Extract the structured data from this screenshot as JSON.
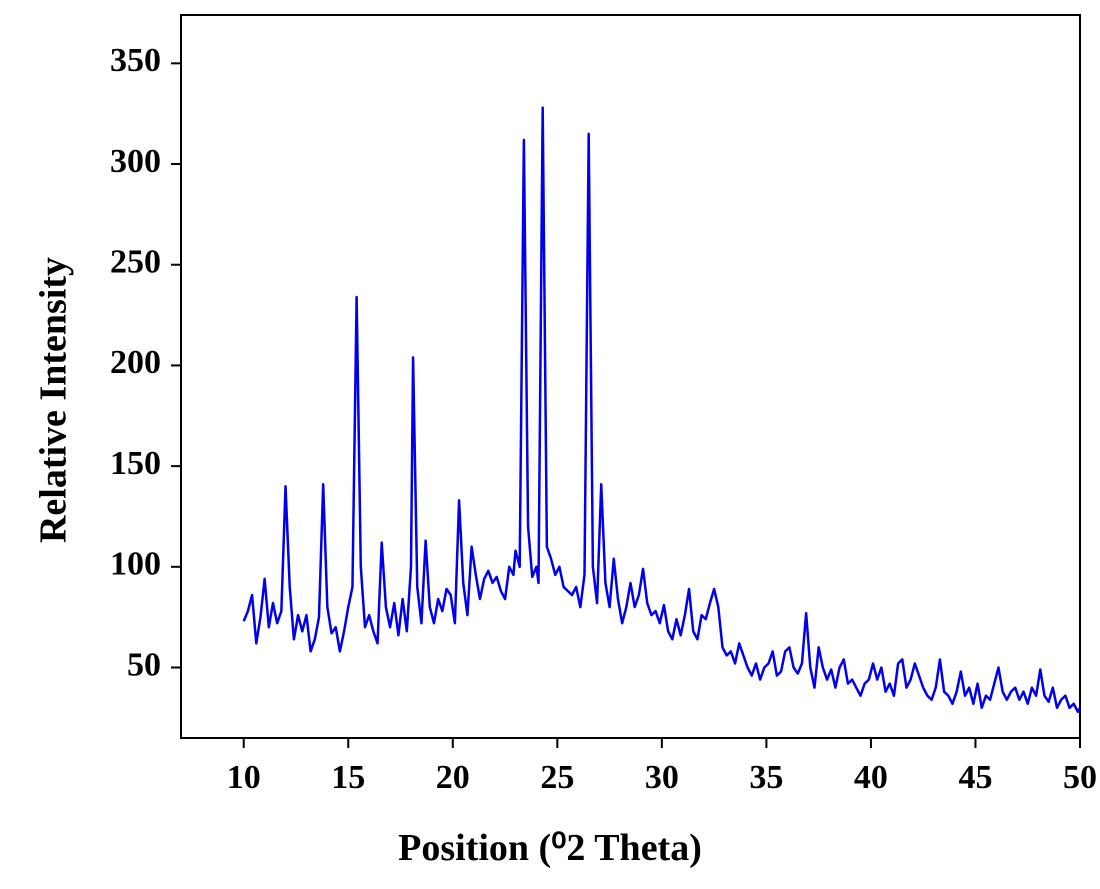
{
  "chart_data": {
    "type": "line",
    "xlabel": "Position (⁰2 Theta)",
    "ylabel": "Relative Intensity",
    "color": "#0000ee",
    "xlim": [
      7,
      50
    ],
    "xticks": [
      10,
      15,
      20,
      25,
      30,
      35,
      40,
      45,
      50
    ],
    "ylim": [
      15,
      374
    ],
    "yticks": [
      50,
      100,
      150,
      200,
      250,
      300,
      350
    ],
    "x": [
      10.0,
      10.2,
      10.4,
      10.6,
      10.8,
      11.0,
      11.2,
      11.4,
      11.6,
      11.8,
      12.0,
      12.2,
      12.4,
      12.6,
      12.8,
      13.0,
      13.2,
      13.4,
      13.6,
      13.8,
      14.0,
      14.2,
      14.4,
      14.6,
      14.8,
      15.0,
      15.2,
      15.4,
      15.6,
      15.8,
      16.0,
      16.2,
      16.4,
      16.6,
      16.8,
      17.0,
      17.2,
      17.4,
      17.6,
      17.8,
      18.0,
      18.1,
      18.3,
      18.5,
      18.7,
      18.9,
      19.1,
      19.3,
      19.5,
      19.7,
      19.9,
      20.1,
      20.3,
      20.5,
      20.7,
      20.9,
      21.1,
      21.3,
      21.5,
      21.7,
      21.9,
      22.1,
      22.3,
      22.5,
      22.7,
      22.9,
      23.0,
      23.2,
      23.4,
      23.6,
      23.8,
      24.0,
      24.1,
      24.3,
      24.5,
      24.7,
      24.9,
      25.1,
      25.3,
      25.5,
      25.7,
      25.9,
      26.1,
      26.3,
      26.5,
      26.7,
      26.9,
      27.1,
      27.3,
      27.5,
      27.7,
      27.9,
      28.1,
      28.3,
      28.5,
      28.7,
      28.9,
      29.1,
      29.3,
      29.5,
      29.7,
      29.9,
      30.1,
      30.3,
      30.5,
      30.7,
      30.9,
      31.1,
      31.3,
      31.5,
      31.7,
      31.9,
      32.1,
      32.3,
      32.5,
      32.7,
      32.9,
      33.1,
      33.3,
      33.5,
      33.7,
      33.9,
      34.1,
      34.3,
      34.5,
      34.7,
      34.9,
      35.1,
      35.3,
      35.5,
      35.7,
      35.9,
      36.1,
      36.3,
      36.5,
      36.7,
      36.9,
      37.1,
      37.3,
      37.5,
      37.7,
      37.9,
      38.1,
      38.3,
      38.5,
      38.7,
      38.9,
      39.1,
      39.3,
      39.5,
      39.7,
      39.9,
      40.1,
      40.3,
      40.5,
      40.7,
      40.9,
      41.1,
      41.3,
      41.5,
      41.7,
      41.9,
      42.1,
      42.3,
      42.5,
      42.7,
      42.9,
      43.1,
      43.3,
      43.5,
      43.7,
      43.9,
      44.1,
      44.3,
      44.5,
      44.7,
      44.9,
      45.1,
      45.3,
      45.5,
      45.7,
      45.9,
      46.1,
      46.3,
      46.5,
      46.7,
      46.9,
      47.1,
      47.3,
      47.5,
      47.7,
      47.9,
      48.1,
      48.3,
      48.5,
      48.7,
      48.9,
      49.1,
      49.3,
      49.5,
      49.7,
      49.9,
      50.0
    ],
    "values": [
      73,
      78,
      86,
      62,
      75,
      94,
      70,
      82,
      72,
      78,
      140,
      90,
      64,
      76,
      68,
      76,
      58,
      64,
      75,
      141,
      80,
      67,
      70,
      58,
      68,
      80,
      90,
      234,
      100,
      70,
      76,
      68,
      62,
      112,
      80,
      70,
      82,
      66,
      84,
      68,
      100,
      204,
      90,
      72,
      113,
      80,
      72,
      84,
      78,
      89,
      86,
      72,
      133,
      92,
      76,
      110,
      96,
      84,
      94,
      98,
      92,
      95,
      88,
      84,
      100,
      96,
      108,
      100,
      312,
      120,
      95,
      100,
      92,
      328,
      110,
      104,
      96,
      100,
      90,
      88,
      86,
      90,
      80,
      96,
      315,
      100,
      82,
      141,
      92,
      80,
      104,
      84,
      72,
      80,
      92,
      80,
      86,
      99,
      82,
      76,
      78,
      72,
      81,
      68,
      64,
      74,
      66,
      76,
      89,
      68,
      64,
      76,
      74,
      82,
      89,
      80,
      60,
      56,
      58,
      52,
      62,
      56,
      50,
      46,
      52,
      44,
      50,
      52,
      58,
      46,
      48,
      58,
      60,
      50,
      47,
      52,
      77,
      50,
      40,
      60,
      50,
      44,
      49,
      40,
      50,
      54,
      42,
      44,
      40,
      36,
      42,
      44,
      52,
      44,
      50,
      38,
      42,
      36,
      52,
      54,
      40,
      44,
      52,
      46,
      40,
      36,
      34,
      40,
      54,
      38,
      36,
      32,
      38,
      48,
      36,
      40,
      32,
      42,
      30,
      36,
      34,
      42,
      50,
      38,
      34,
      38,
      40,
      34,
      38,
      32,
      40,
      36,
      49,
      36,
      33,
      40,
      30,
      34,
      36,
      30,
      32,
      28,
      30
    ]
  }
}
